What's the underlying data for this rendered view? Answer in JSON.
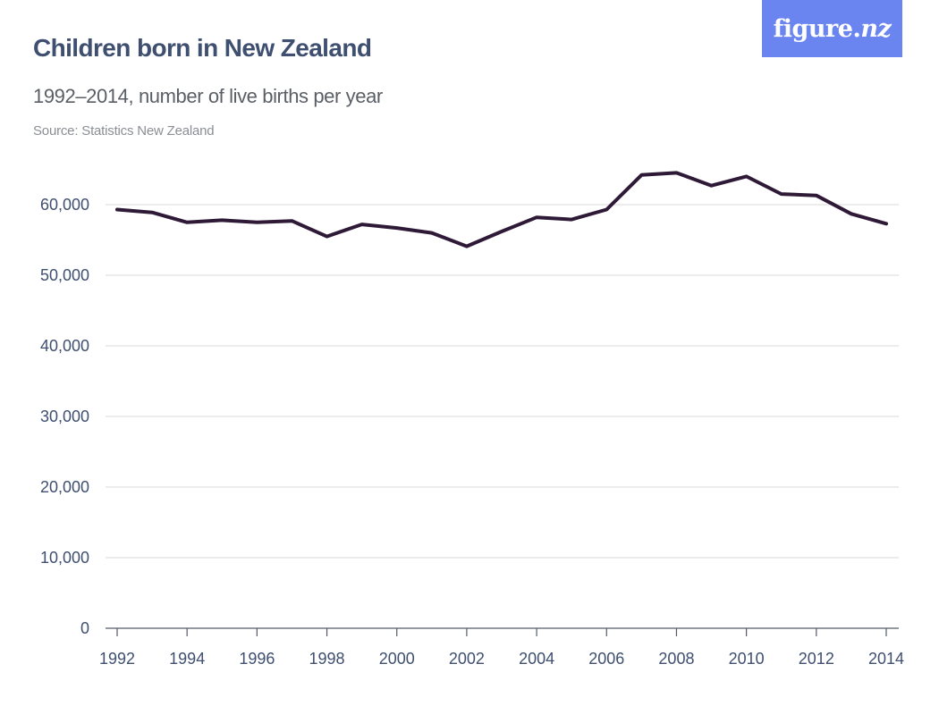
{
  "logo": {
    "text_main": "figure.",
    "text_accent": "nz"
  },
  "colors": {
    "title": "#3f4f70",
    "line": "#2e1a36",
    "grid": "#d9d9d9",
    "logo_bg": "#6a85f0"
  },
  "chart_data": {
    "type": "line",
    "title": "Children born in New Zealand",
    "subtitle": "1992–2014, number of live births per year",
    "source": "Source: Statistics New Zealand",
    "xlabel": "",
    "ylabel": "",
    "x": [
      1992,
      1993,
      1994,
      1995,
      1996,
      1997,
      1998,
      1999,
      2000,
      2001,
      2002,
      2003,
      2004,
      2005,
      2006,
      2007,
      2008,
      2009,
      2010,
      2011,
      2012,
      2013,
      2014
    ],
    "series": [
      {
        "values": [
          59300,
          58900,
          57500,
          57800,
          57500,
          57700,
          55500,
          57200,
          56700,
          56000,
          54100,
          56200,
          58200,
          57900,
          59300,
          64200,
          64500,
          62700,
          64000,
          61500,
          61300,
          58700,
          57300
        ]
      }
    ],
    "ylim": [
      0,
      65000
    ],
    "yticks": [
      0,
      10000,
      20000,
      30000,
      40000,
      50000,
      60000
    ],
    "ytick_labels": [
      "0",
      "10,000",
      "20,000",
      "30,000",
      "40,000",
      "50,000",
      "60,000"
    ],
    "xticks": [
      1992,
      1994,
      1996,
      1998,
      2000,
      2002,
      2004,
      2006,
      2008,
      2010,
      2012,
      2014
    ],
    "xtick_labels": [
      "1992",
      "1994",
      "1996",
      "1998",
      "2000",
      "2002",
      "2004",
      "2006",
      "2008",
      "2010",
      "2012",
      "2014"
    ],
    "grid": true
  }
}
